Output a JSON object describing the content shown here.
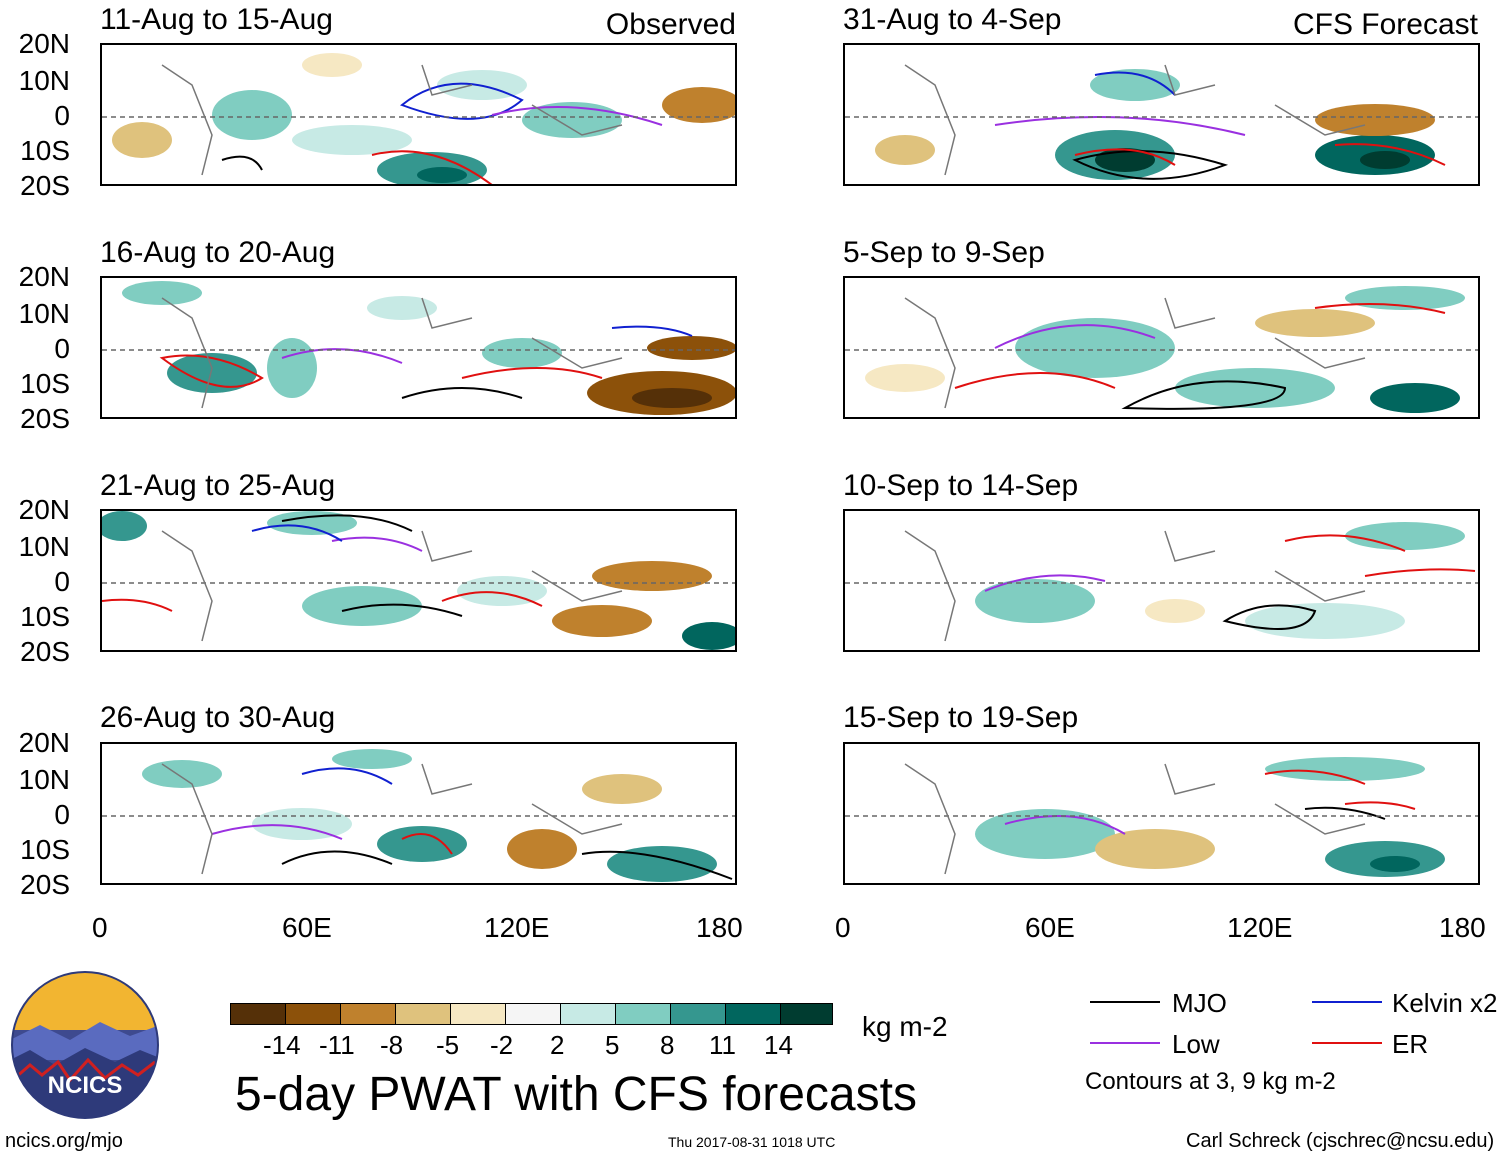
{
  "main_title": "5-day PWAT with CFS forecasts",
  "units": "kg m-2",
  "observed_label": "Observed",
  "forecast_label": "CFS Forecast",
  "lat_ticks": [
    "20N",
    "10N",
    "0",
    "10S",
    "20S"
  ],
  "lon_ticks": [
    "0",
    "60E",
    "120E",
    "180"
  ],
  "panels": [
    {
      "period": "11-Aug to 15-Aug"
    },
    {
      "period": "16-Aug to 20-Aug"
    },
    {
      "period": "21-Aug to 25-Aug"
    },
    {
      "period": "26-Aug to 30-Aug"
    },
    {
      "period": "31-Aug to 4-Sep"
    },
    {
      "period": "5-Sep to 9-Sep"
    },
    {
      "period": "10-Sep to 14-Sep"
    },
    {
      "period": "15-Sep to 19-Sep"
    }
  ],
  "colorbar": {
    "labels": [
      "-14",
      "-11",
      "-8",
      "-5",
      "-2",
      "2",
      "5",
      "8",
      "11",
      "14"
    ],
    "colors": [
      "#553008",
      "#8c510a",
      "#bf812d",
      "#dfc27d",
      "#f6e8c3",
      "#f5f5f5",
      "#c7eae5",
      "#80cdc1",
      "#35978f",
      "#01665e",
      "#003c30"
    ]
  },
  "legend": {
    "mjo": "MJO",
    "kelvin": "Kelvin x2",
    "low": "Low",
    "er": "ER",
    "note": "Contours at 3, 9 kg m-2",
    "colors": {
      "mjo": "#000000",
      "kelvin": "#1020d0",
      "low": "#9a30e0",
      "er": "#e01010"
    }
  },
  "logo_text": "NCICS",
  "footer": {
    "url": "ncics.org/mjo",
    "timestamp": "Thu 2017-08-31 1018 UTC",
    "author": "Carl Schreck (cjschrec@ncsu.edu)"
  }
}
